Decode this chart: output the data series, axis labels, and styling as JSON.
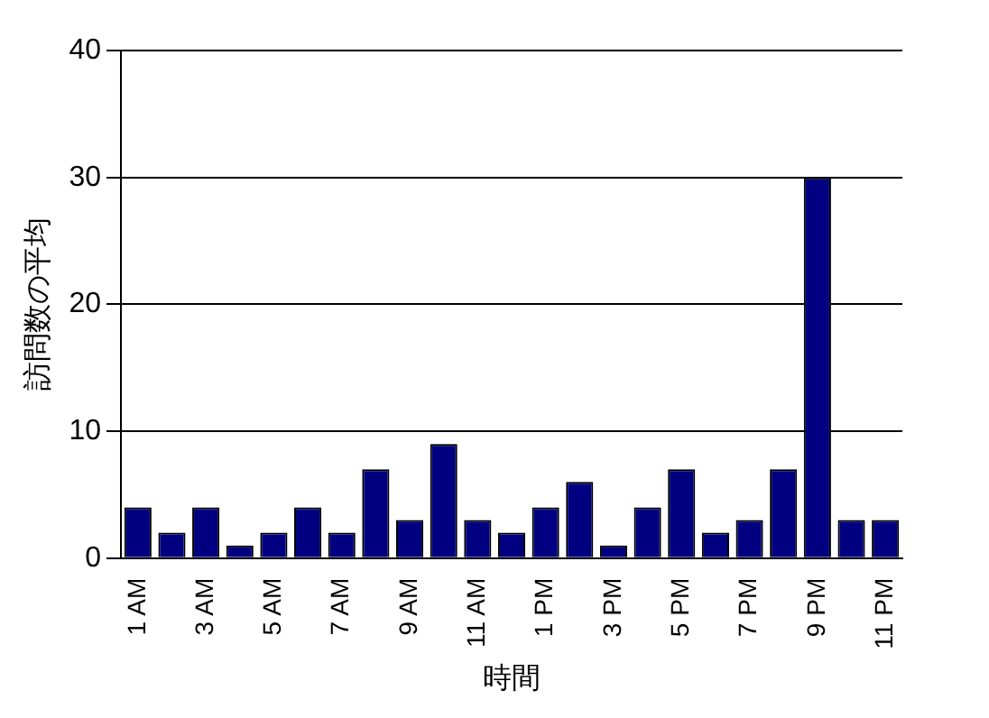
{
  "chart_data": {
    "type": "bar",
    "xlabel": "時間",
    "ylabel": "訪問数の平均",
    "categories": [
      "1 AM",
      null,
      "3 AM",
      null,
      "5 AM",
      null,
      "7 AM",
      null,
      "9 AM",
      null,
      "11 AM",
      null,
      "1 PM",
      null,
      "3 PM",
      null,
      "5 PM",
      null,
      "7 PM",
      null,
      "9 PM",
      null,
      "11 PM"
    ],
    "values": [
      4,
      2,
      4,
      1,
      2,
      4,
      2,
      7,
      3,
      9,
      3,
      2,
      4,
      6,
      1,
      4,
      7,
      2,
      3,
      7,
      30,
      3,
      3
    ],
    "color": "#000080",
    "ylim": [
      0,
      40
    ],
    "yticks": [
      0,
      10,
      20,
      30,
      40
    ],
    "grid": "y",
    "legend": false
  }
}
